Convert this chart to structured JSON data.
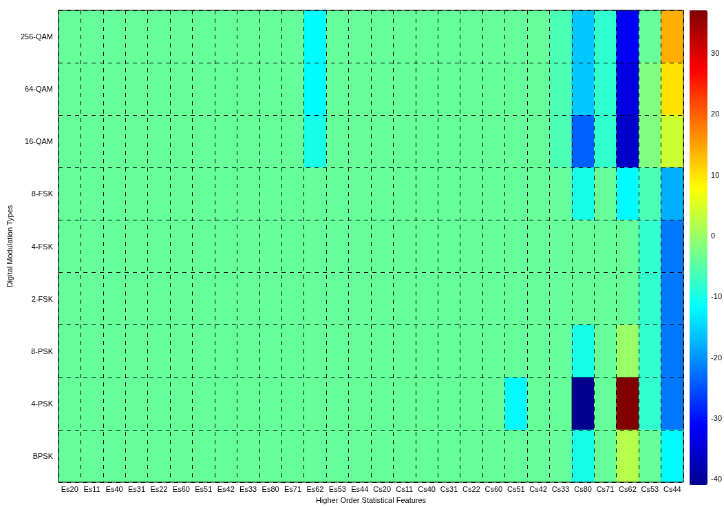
{
  "chart_data": {
    "type": "heatmap",
    "xlabel": "Higher Order Statistical Features",
    "ylabel": "Digital Modulation Types",
    "categories": [
      "Es20",
      "Es11",
      "Es40",
      "Es31",
      "Es22",
      "Es60",
      "Es51",
      "Es42",
      "Es33",
      "Es80",
      "Es71",
      "Es62",
      "Es53",
      "Es44",
      "Cs20",
      "Cs11",
      "Cs40",
      "Cs31",
      "Cs22",
      "Cs60",
      "Cs51",
      "Cs42",
      "Cs33",
      "Cs80",
      "Cs71",
      "Cs62",
      "Cs53",
      "Cs44"
    ],
    "y_categories": [
      "256-QAM",
      "64-QAM",
      "16-QAM",
      "8-FSK",
      "4-FSK",
      "2-FSK",
      "8-PSK",
      "4-PSK",
      "BPSK"
    ],
    "cells": [
      [
        -4,
        -4,
        -4,
        -4,
        -4,
        -4,
        -4,
        -4,
        -4,
        -4,
        -4,
        -12,
        -4,
        -4,
        -4,
        -4,
        -4,
        -4,
        -4,
        -4,
        -4,
        -4,
        -6,
        -16,
        -8,
        -32,
        -4,
        14
      ],
      [
        -4,
        -4,
        -4,
        -4,
        -4,
        -4,
        -4,
        -4,
        -4,
        -4,
        -4,
        -12,
        -4,
        -4,
        -4,
        -4,
        -4,
        -4,
        -4,
        -4,
        -4,
        -4,
        -6,
        -16,
        -8,
        -34,
        -2,
        10
      ],
      [
        -4,
        -4,
        -4,
        -4,
        -4,
        -4,
        -4,
        -4,
        -4,
        -4,
        -4,
        -10,
        -4,
        -4,
        -4,
        -4,
        -4,
        -4,
        -4,
        -4,
        -4,
        -4,
        -6,
        -24,
        -8,
        -36,
        -2,
        4
      ],
      [
        -4,
        -4,
        -4,
        -4,
        -4,
        -4,
        -4,
        -4,
        -4,
        -4,
        -4,
        -4,
        -4,
        -4,
        -4,
        -4,
        -4,
        -4,
        -4,
        -4,
        -4,
        -4,
        -4,
        -10,
        -4,
        -12,
        -6,
        -18
      ],
      [
        -4,
        -4,
        -4,
        -4,
        -4,
        -4,
        -4,
        -4,
        -4,
        -4,
        -4,
        -4,
        -4,
        -4,
        -4,
        -4,
        -4,
        -4,
        -4,
        -4,
        -4,
        -4,
        -4,
        -4,
        -4,
        -4,
        -8,
        -22
      ],
      [
        -4,
        -4,
        -4,
        -4,
        -4,
        -4,
        -4,
        -4,
        -4,
        -4,
        -4,
        -4,
        -4,
        -4,
        -4,
        -4,
        -4,
        -4,
        -4,
        -4,
        -4,
        -4,
        -4,
        -4,
        -4,
        -4,
        -8,
        -22
      ],
      [
        -4,
        -4,
        -4,
        -4,
        -4,
        -4,
        -4,
        -4,
        -4,
        -4,
        -4,
        -4,
        -4,
        -4,
        -4,
        -4,
        -4,
        -4,
        -4,
        -4,
        -4,
        -4,
        -4,
        -10,
        -4,
        0,
        -8,
        -22
      ],
      [
        -4,
        -4,
        -4,
        -4,
        -4,
        -4,
        -4,
        -4,
        -4,
        -4,
        -4,
        -4,
        -4,
        -4,
        -4,
        -4,
        -4,
        -4,
        -4,
        -4,
        -12,
        -4,
        -4,
        -41,
        -4,
        37,
        -8,
        -22
      ],
      [
        -4,
        -4,
        -4,
        -4,
        -4,
        -4,
        -4,
        -4,
        -4,
        -4,
        -4,
        -4,
        -4,
        -4,
        -4,
        -4,
        -4,
        -4,
        -4,
        -4,
        -4,
        -4,
        -4,
        -10,
        -4,
        2,
        -4,
        -12
      ]
    ],
    "clim": [
      -41,
      37
    ],
    "cticks": [
      -40,
      -30,
      -20,
      -10,
      0,
      10,
      20,
      30
    ],
    "grid": true
  }
}
